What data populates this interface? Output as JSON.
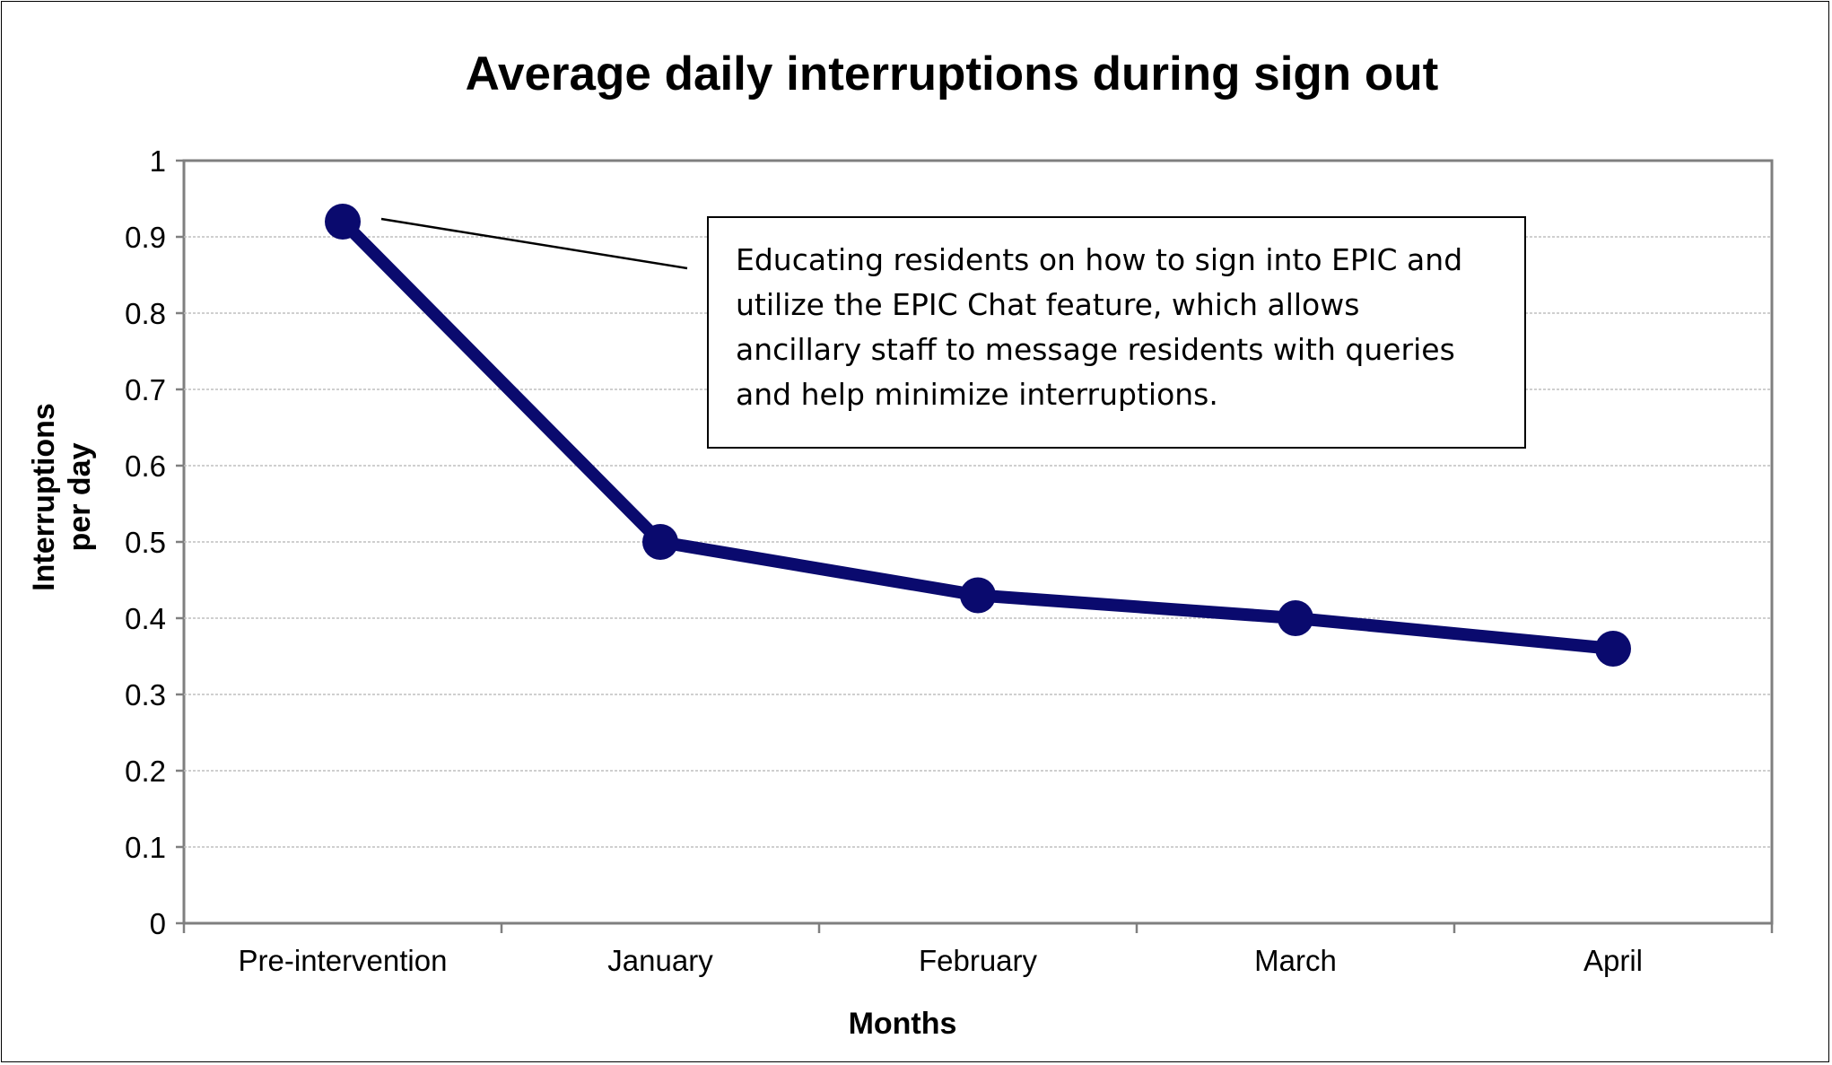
{
  "chart_data": {
    "type": "line",
    "title": "Average daily interruptions during sign out",
    "xlabel": "Months",
    "ylabel": "Interruptions per day",
    "ylabel_lines": [
      "Interruptions",
      "per day"
    ],
    "categories": [
      "Pre-intervention",
      "January",
      "February",
      "March",
      "April"
    ],
    "series": [
      {
        "values": [
          0.92,
          0.5,
          0.43,
          0.4,
          0.36
        ],
        "color": "#0a0a6e"
      }
    ],
    "ylim": [
      0,
      1
    ],
    "yticks": [
      "0",
      "0.1",
      "0.2",
      "0.3",
      "0.4",
      "0.5",
      "0.6",
      "0.7",
      "0.8",
      "0.9",
      "1"
    ],
    "grid": true,
    "legend": "none",
    "annotation": {
      "text": "Educating residents on how to sign into EPIC and\nutilize the EPIC Chat feature, which allows\nancillary staff to message residents with queries\nand help minimize interruptions.",
      "points_to": "Pre-intervention"
    }
  }
}
